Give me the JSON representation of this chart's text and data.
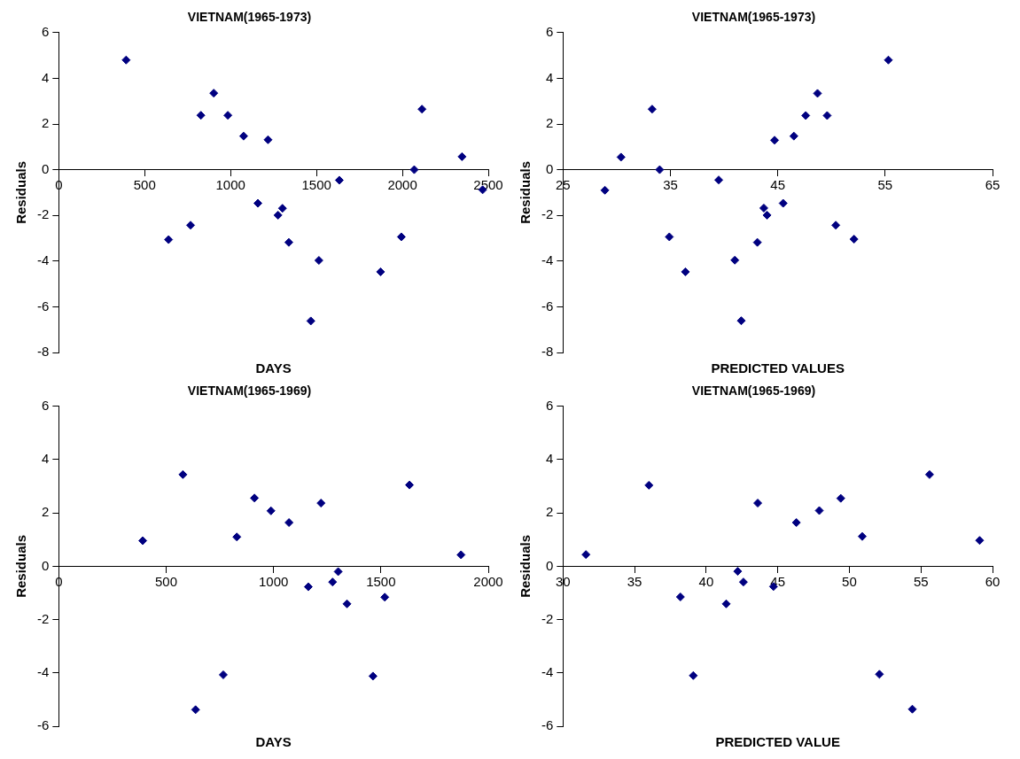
{
  "chart_data": [
    {
      "type": "scatter",
      "title": "VIETNAM(1965-1973)",
      "xlabel": "DAYS",
      "ylabel": "Residuals",
      "marker": "diamond",
      "grid": false,
      "xlim": [
        0,
        2500
      ],
      "xticks": [
        0,
        500,
        1000,
        1500,
        2000,
        2500
      ],
      "ylim": [
        -8,
        6
      ],
      "yticks": [
        -8,
        -6,
        -4,
        -2,
        0,
        2,
        4,
        6
      ],
      "series": [
        {
          "color": "#000080",
          "x": [
            392,
            639,
            767,
            827,
            902,
            984,
            1076,
            1218,
            1159,
            1276,
            1302,
            1339,
            1467,
            1514,
            1633,
            1873,
            1994,
            2069,
            2114,
            2347,
            2467
          ],
          "values": [
            4.8,
            -3.06,
            -2.43,
            2.38,
            3.35,
            2.38,
            1.47,
            1.31,
            -1.47,
            -1.99,
            -1.69,
            -3.18,
            -6.62,
            -3.97,
            -0.46,
            -4.47,
            -2.94,
            0,
            2.65,
            0.57,
            -0.88
          ]
        }
      ]
    },
    {
      "type": "scatter",
      "title": "VIETNAM(1965-1973)",
      "xlabel": "PREDICTED VALUES",
      "ylabel": "Residuals",
      "marker": "diamond",
      "grid": false,
      "xlim": [
        25,
        65
      ],
      "xticks": [
        25,
        35,
        45,
        55,
        65
      ],
      "ylim": [
        -8,
        6
      ],
      "yticks": [
        -8,
        -6,
        -4,
        -2,
        0,
        2,
        4,
        6
      ],
      "series": [
        {
          "color": "#000080",
          "x": [
            28.9,
            30.4,
            33.3,
            34.0,
            34.9,
            36.4,
            39.5,
            41.0,
            41.6,
            43.1,
            43.7,
            44.0,
            44.7,
            45.5,
            46.5,
            47.6,
            48.7,
            49.6,
            50.4,
            52.1,
            55.3
          ],
          "values": [
            -0.9,
            0.55,
            2.65,
            0,
            -2.94,
            -4.47,
            -0.45,
            -3.96,
            -6.61,
            -3.18,
            -1.68,
            -1.99,
            1.29,
            -1.47,
            1.47,
            2.37,
            3.34,
            2.37,
            -2.43,
            -3.04,
            4.8
          ]
        }
      ]
    },
    {
      "type": "scatter",
      "title": "VIETNAM(1965-1969)",
      "xlabel": "DAYS",
      "ylabel": "Residuals",
      "marker": "diamond",
      "grid": false,
      "xlim": [
        0,
        2000
      ],
      "xticks": [
        0,
        500,
        1000,
        1500,
        2000
      ],
      "ylim": [
        -6,
        6
      ],
      "yticks": [
        -6,
        -4,
        -2,
        0,
        2,
        4,
        6
      ],
      "series": [
        {
          "color": "#000080",
          "x": [
            391,
            578,
            637,
            766,
            829,
            911,
            988,
            1072,
            1162,
            1221,
            1275,
            1301,
            1342,
            1463,
            1518,
            1633,
            1873
          ],
          "values": [
            0.96,
            3.44,
            -5.38,
            -4.07,
            1.1,
            2.56,
            2.08,
            1.64,
            -0.77,
            2.37,
            -0.59,
            -0.2,
            -1.41,
            -4.12,
            -1.16,
            3.05,
            0.43
          ]
        }
      ]
    },
    {
      "type": "scatter",
      "title": "VIETNAM(1965-1969)",
      "xlabel": "PREDICTED VALUE",
      "ylabel": "Residuals",
      "marker": "diamond",
      "grid": false,
      "xlim": [
        30,
        60
      ],
      "xticks": [
        30,
        35,
        40,
        45,
        50,
        55,
        60
      ],
      "ylim": [
        -6,
        6
      ],
      "yticks": [
        -6,
        -4,
        -2,
        0,
        2,
        4,
        6
      ],
      "series": [
        {
          "color": "#000080",
          "x": [
            31.6,
            36.0,
            38.2,
            39.1,
            41.4,
            42.2,
            42.6,
            43.6,
            44.7,
            46.3,
            47.9,
            49.4,
            50.9,
            52.1,
            54.4,
            55.6,
            59.1
          ],
          "values": [
            0.44,
            3.04,
            -1.15,
            -4.1,
            -1.41,
            -0.19,
            -0.59,
            2.37,
            -0.76,
            1.64,
            2.09,
            2.55,
            1.12,
            -4.05,
            -5.36,
            3.44,
            0.97
          ]
        }
      ]
    }
  ]
}
